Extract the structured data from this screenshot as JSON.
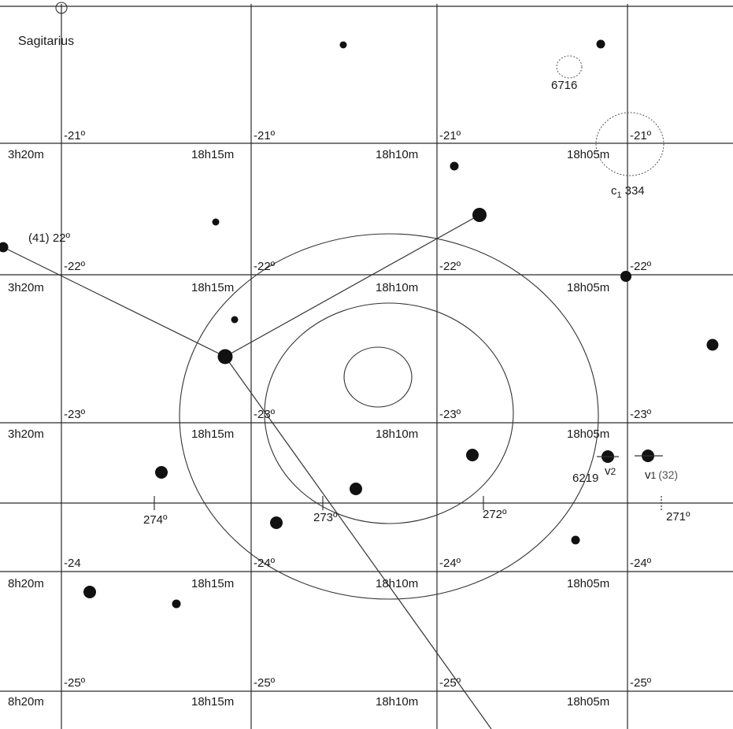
{
  "constellation": "Sagitarius",
  "grid_rows": [
    {
      "dec": "-21º",
      "ra": [
        "3h20m",
        "18h15m",
        "18h10m",
        "18h05m"
      ]
    },
    {
      "dec": "-22º",
      "ra": [
        "3h20m",
        "18h15m",
        "18h10m",
        "18h05m"
      ]
    },
    {
      "dec": "-23º",
      "ra": [
        "3h20m",
        "18h15m",
        "18h10m",
        "18h05m"
      ]
    },
    {
      "dec": "-24º",
      "ra": [
        "8h20m",
        "18h15m",
        "18h10m",
        "18h05m"
      ]
    },
    {
      "dec": "-25º",
      "ra": [
        "8h20m",
        "18h15m",
        "18h10m",
        "18h05m"
      ]
    }
  ],
  "dec_label_first_col_row4": "-24",
  "ecliptic_ticks": [
    "274º",
    "273º",
    "272º",
    "271º"
  ],
  "object_labels": {
    "ngc6716": "6716",
    "c1_label": "c",
    "c1_sub": "1",
    "c1_num": "334",
    "ngc6219": "6219",
    "v2_label": "v",
    "v2_sub": "2",
    "v1_label": "v",
    "v1_sub": "1",
    "v1_num": "(32)",
    "star41": "(41) 22º"
  }
}
